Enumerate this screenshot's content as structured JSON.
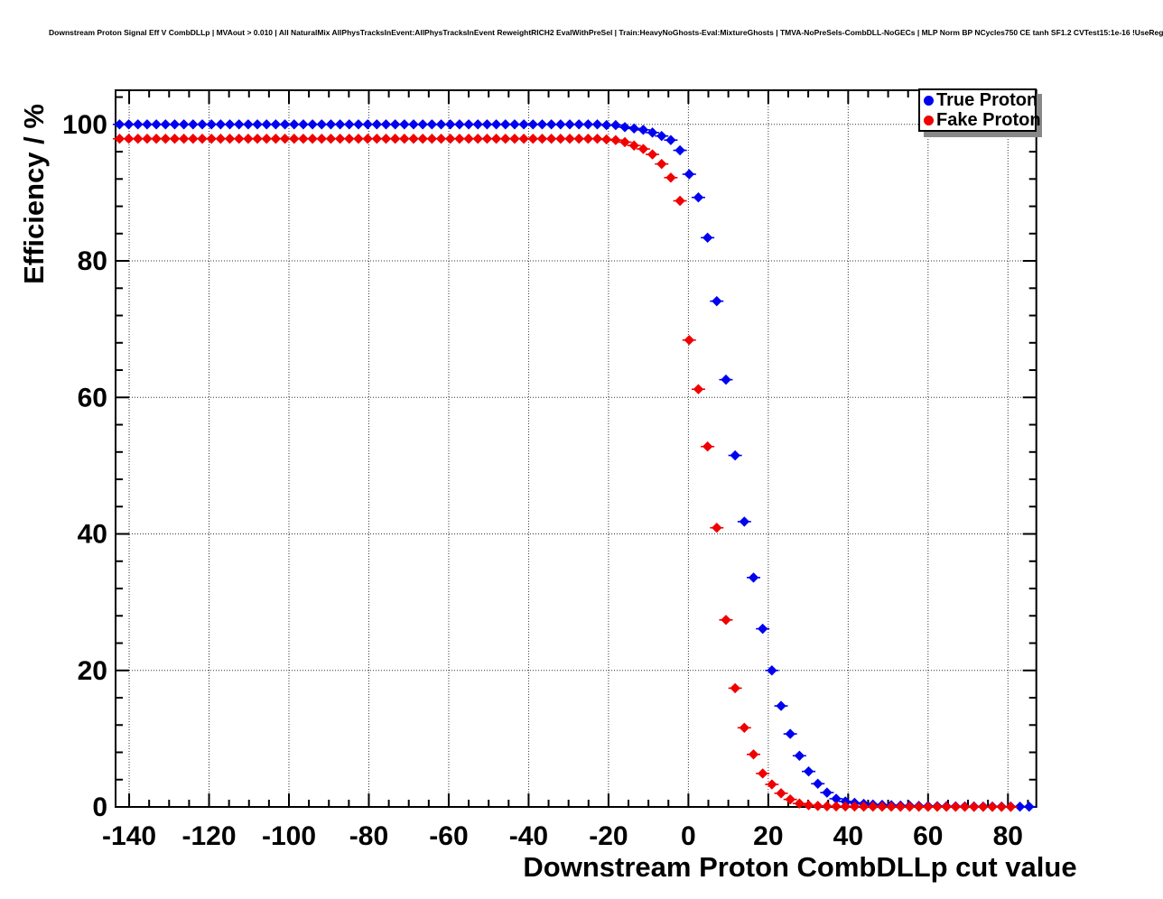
{
  "header": {
    "title": "Downstream Proton Signal Eff V CombDLLp | MVAout > 0.010 | All NaturalMix AllPhysTracksInEvent:AllPhysTracksInEvent ReweightRICH2 EvalWithPreSel | Train:HeavyNoGhosts-Eval:MixtureGhosts | TMVA-NoPreSels-CombDLL-NoGECs | MLP Norm BP NCycles750 CE tanh SF1.2 CVTest15:1e-16 !UseReg"
  },
  "legend": {
    "items": [
      {
        "label": "True Proton",
        "color": "#0000f0"
      },
      {
        "label": "Fake Proton",
        "color": "#f00000"
      }
    ]
  },
  "chart_data": {
    "type": "scatter",
    "title": "Downstream Proton Signal Eff V CombDLLp | MVAout > 0.010 | All NaturalMix AllPhysTracksInEvent:AllPhysTracksInEvent ReweightRICH2 EvalWithPreSel | Train:HeavyNoGhosts-Eval:MixtureGhosts | TMVA-NoPreSels-CombDLL-NoGECs | MLP Norm BP NCycles750 CE tanh SF1.2 CVTest15:1e-16 !UseReg",
    "xlabel": "Downstream Proton CombDLLp cut value",
    "ylabel": "Efficiency / %",
    "xlim": [
      -143.4,
      87.1
    ],
    "ylim": [
      0,
      105
    ],
    "grid": true,
    "grid_style": "dotted",
    "legend_position": "top-right",
    "x_major_ticks": [
      -140,
      -120,
      -100,
      -80,
      -60,
      -40,
      -20,
      0,
      20,
      40,
      60,
      80
    ],
    "x_tick_labels": [
      "-140",
      "-120",
      "-100",
      "-80",
      "-60",
      "-40",
      "-20",
      "0",
      "20",
      "40",
      "60",
      "80"
    ],
    "x_minor_step": 5,
    "y_major_ticks": [
      0,
      20,
      40,
      60,
      80,
      100
    ],
    "y_tick_labels": [
      "0",
      "20",
      "40",
      "60",
      "80",
      "100"
    ],
    "y_minor_step": 4,
    "x_start": -142.4,
    "x_step": 2.3,
    "series": [
      {
        "name": "True Proton",
        "color": "#0000f0",
        "marker": "diamond",
        "values": [
          100,
          100,
          100,
          100,
          100,
          100,
          100,
          100,
          100,
          100,
          100,
          100,
          100,
          100,
          100,
          100,
          100,
          100,
          100,
          100,
          100,
          100,
          100,
          100,
          100,
          100,
          100,
          100,
          100,
          100,
          100,
          100,
          100,
          100,
          100,
          100,
          100,
          100,
          100,
          100,
          100,
          100,
          100,
          100,
          100,
          100,
          100,
          100,
          100,
          100,
          100,
          100,
          100,
          99.9,
          99.9,
          99.6,
          99.4,
          99.2,
          98.8,
          98.3,
          97.7,
          96.2,
          92.7,
          89.3,
          83.4,
          74.1,
          62.6,
          51.5,
          41.8,
          33.6,
          26.1,
          20.0,
          14.8,
          10.7,
          7.5,
          5.2,
          3.4,
          2.1,
          1.2,
          0.8,
          0.6,
          0.45,
          0.35,
          0.3,
          0.25,
          0.2,
          0.17,
          0.15,
          0.13,
          0.11,
          0.1,
          0.09,
          0.08,
          0.07,
          0.06,
          0.06,
          0.05,
          0.05,
          0.04,
          0.04
        ]
      },
      {
        "name": "Fake Proton",
        "color": "#f00000",
        "marker": "diamond",
        "values": [
          97.9,
          97.9,
          97.9,
          97.9,
          97.9,
          97.9,
          97.9,
          97.9,
          97.9,
          97.9,
          97.9,
          97.9,
          97.9,
          97.9,
          97.9,
          97.9,
          97.9,
          97.9,
          97.9,
          97.9,
          97.9,
          97.9,
          97.9,
          97.9,
          97.9,
          97.9,
          97.9,
          97.9,
          97.9,
          97.9,
          97.9,
          97.9,
          97.9,
          97.9,
          97.9,
          97.9,
          97.9,
          97.9,
          97.9,
          97.9,
          97.9,
          97.9,
          97.9,
          97.9,
          97.9,
          97.9,
          97.9,
          97.9,
          97.9,
          97.9,
          97.9,
          97.9,
          97.9,
          97.8,
          97.7,
          97.4,
          96.9,
          96.4,
          95.6,
          94.2,
          92.2,
          88.8,
          68.4,
          61.2,
          52.8,
          40.9,
          27.4,
          17.4,
          11.6,
          7.7,
          4.9,
          3.3,
          2.0,
          1.1,
          0.5,
          0.25,
          0.15,
          0.1,
          0.08,
          0.07,
          0.06,
          0.05,
          0.05,
          0.04,
          0.04,
          0.03,
          0.03,
          0.03,
          0.02,
          0.02,
          0.02,
          0.02,
          0.02,
          0.01,
          0.01,
          0.01,
          0.01,
          0.01
        ]
      }
    ]
  }
}
